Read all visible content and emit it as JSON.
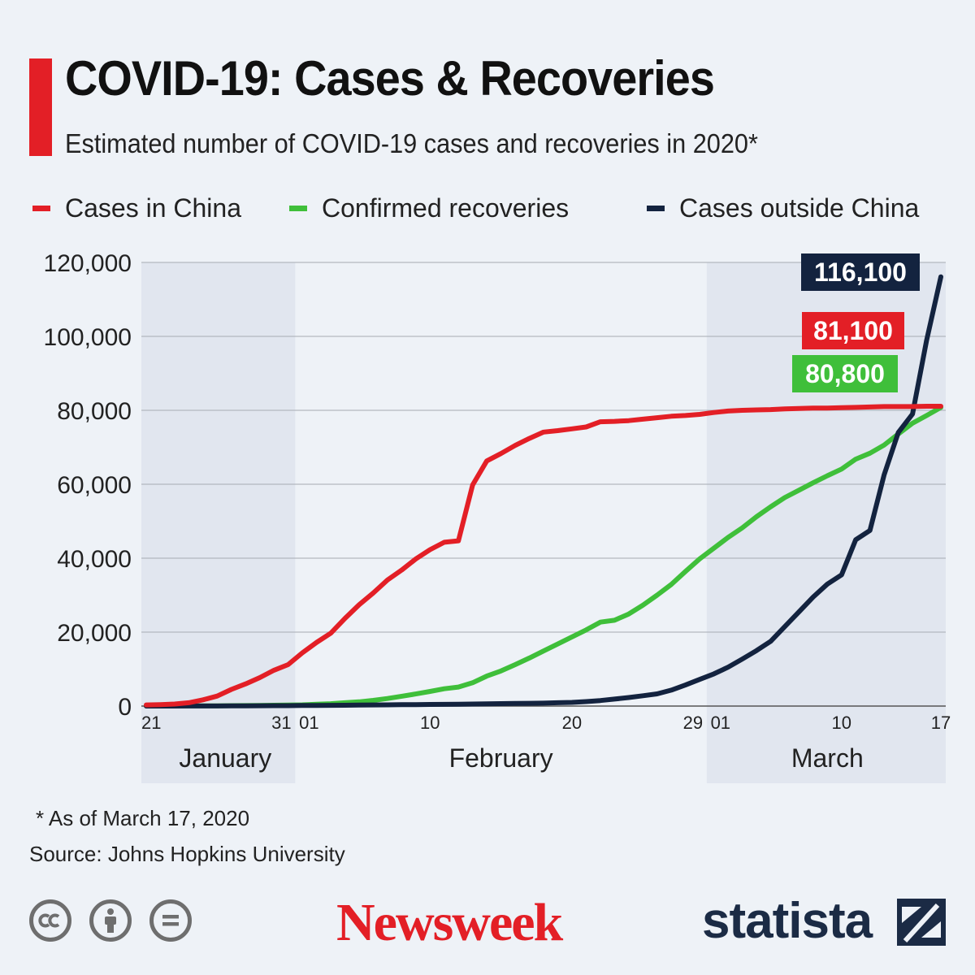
{
  "header": {
    "title": "COVID-19: Cases & Recoveries",
    "subtitle": "Estimated number of COVID-19 cases and recoveries in 2020*"
  },
  "legend": [
    {
      "label": "Cases in China",
      "color": "#e31f26"
    },
    {
      "label": "Confirmed recoveries",
      "color": "#3fbf3a"
    },
    {
      "label": "Cases outside China",
      "color": "#13233f"
    }
  ],
  "chart_data": {
    "type": "line",
    "title": "COVID-19: Cases & Recoveries",
    "ylim": [
      0,
      120000
    ],
    "yticks": [
      0,
      20000,
      40000,
      60000,
      80000,
      100000,
      120000
    ],
    "ytick_labels": [
      "0",
      "20,000",
      "40,000",
      "60,000",
      "80,000",
      "100,000",
      "120,000"
    ],
    "x_range_days": [
      0,
      56
    ],
    "xticks": [
      {
        "day": 0,
        "label": "21"
      },
      {
        "day": 10,
        "label": "31"
      },
      {
        "day": 11,
        "label": "01"
      },
      {
        "day": 20,
        "label": "10"
      },
      {
        "day": 30,
        "label": "20"
      },
      {
        "day": 39,
        "label": "29"
      },
      {
        "day": 40,
        "label": "01"
      },
      {
        "day": 49,
        "label": "10"
      },
      {
        "day": 56,
        "label": "17"
      }
    ],
    "months": [
      {
        "label": "January",
        "start_day": 0,
        "end_day": 10,
        "shaded": true
      },
      {
        "label": "February",
        "start_day": 11,
        "end_day": 39,
        "shaded": false
      },
      {
        "label": "March",
        "start_day": 40,
        "end_day": 56,
        "shaded": true
      }
    ],
    "series": [
      {
        "name": "Cases in China",
        "color": "#e31f26",
        "end_label": "81,100",
        "x": [
          0,
          1,
          2,
          3,
          4,
          5,
          6,
          7,
          8,
          9,
          10,
          11,
          12,
          13,
          14,
          15,
          16,
          17,
          18,
          19,
          20,
          21,
          22,
          23,
          24,
          25,
          26,
          27,
          28,
          29,
          30,
          31,
          32,
          33,
          34,
          35,
          36,
          37,
          38,
          39,
          40,
          41,
          42,
          43,
          44,
          45,
          46,
          47,
          48,
          49,
          50,
          51,
          52,
          53,
          54,
          55,
          56
        ],
        "values": [
          300,
          400,
          550,
          900,
          1700,
          2700,
          4500,
          6000,
          7700,
          9700,
          11200,
          14400,
          17200,
          19700,
          23700,
          27400,
          30600,
          34100,
          36800,
          39800,
          42300,
          44300,
          44700,
          59800,
          66300,
          68300,
          70500,
          72400,
          74100,
          74500,
          75000,
          75500,
          76900,
          77000,
          77200,
          77600,
          78000,
          78400,
          78600,
          78900,
          79400,
          79800,
          80000,
          80100,
          80200,
          80400,
          80500,
          80600,
          80600,
          80700,
          80800,
          80900,
          81000,
          81000,
          81000,
          81100,
          81100
        ]
      },
      {
        "name": "Confirmed recoveries",
        "color": "#3fbf3a",
        "end_label": "80,800",
        "x": [
          0,
          1,
          2,
          3,
          4,
          5,
          6,
          7,
          8,
          9,
          10,
          11,
          12,
          13,
          14,
          15,
          16,
          17,
          18,
          19,
          20,
          21,
          22,
          23,
          24,
          25,
          26,
          27,
          28,
          29,
          30,
          31,
          32,
          33,
          34,
          35,
          36,
          37,
          38,
          39,
          40,
          41,
          42,
          43,
          44,
          45,
          46,
          47,
          48,
          49,
          50,
          51,
          52,
          53,
          54,
          55,
          56
        ],
        "values": [
          28,
          30,
          36,
          39,
          52,
          61,
          107,
          126,
          143,
          222,
          284,
          328,
          475,
          632,
          892,
          1150,
          1540,
          2050,
          2650,
          3280,
          3950,
          4680,
          5150,
          6300,
          8100,
          9500,
          11200,
          13000,
          14900,
          16800,
          18700,
          20600,
          22700,
          23200,
          24900,
          27300,
          30000,
          32900,
          36400,
          39800,
          42700,
          45600,
          48200,
          51200,
          53900,
          56400,
          58400,
          60400,
          62300,
          64100,
          66800,
          68400,
          70600,
          73600,
          76500,
          78600,
          80800
        ]
      },
      {
        "name": "Cases outside China",
        "color": "#13233f",
        "end_label": "116,100",
        "x": [
          0,
          1,
          2,
          3,
          4,
          5,
          6,
          7,
          8,
          9,
          10,
          11,
          12,
          13,
          14,
          15,
          16,
          17,
          18,
          19,
          20,
          21,
          22,
          23,
          24,
          25,
          26,
          27,
          28,
          29,
          30,
          31,
          32,
          33,
          34,
          35,
          36,
          37,
          38,
          39,
          40,
          41,
          42,
          43,
          44,
          45,
          46,
          47,
          48,
          49,
          50,
          51,
          52,
          53,
          54,
          55,
          56
        ],
        "values": [
          4,
          7,
          10,
          15,
          20,
          30,
          40,
          60,
          80,
          100,
          120,
          150,
          170,
          190,
          230,
          270,
          300,
          330,
          370,
          400,
          440,
          470,
          510,
          550,
          600,
          650,
          700,
          750,
          800,
          900,
          1000,
          1200,
          1500,
          1900,
          2300,
          2800,
          3300,
          4300,
          5700,
          7200,
          8700,
          10500,
          12700,
          15000,
          17500,
          21500,
          25500,
          29500,
          33000,
          35500,
          45000,
          47500,
          62500,
          74000,
          79000,
          99000,
          116100
        ]
      }
    ]
  },
  "footer": {
    "footnote": "* As of March 17, 2020",
    "source": "Source: Johns Hopkins University",
    "brand_primary": "Newsweek",
    "brand_secondary": "statista"
  }
}
